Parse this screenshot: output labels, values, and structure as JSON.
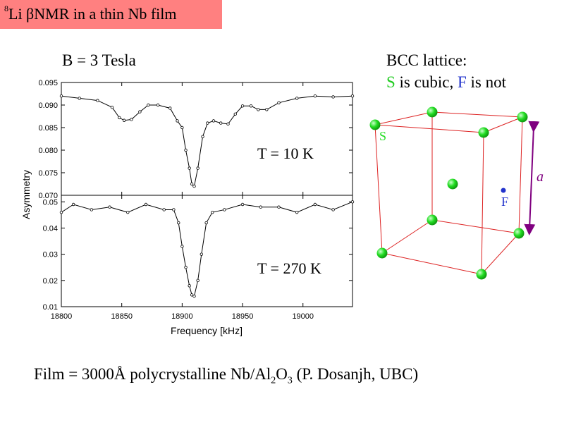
{
  "slide": {
    "title_sup": "8",
    "title_text": "Li βNMR in a thin Nb film",
    "field": "B = 3 Tesla",
    "bcc_title": "BCC lattice:",
    "bcc_s": "S",
    "bcc_mid": " is cubic, ",
    "bcc_f": "F",
    "bcc_end": " is not",
    "footer_pre": "Film = 3000Å polycrystalline Nb/Al",
    "footer_sub1": "2",
    "footer_mid": "O",
    "footer_sub2": "3",
    "footer_post": " (P. Dosanjh, UBC)"
  },
  "lattice": {
    "site_s": "S",
    "site_f": "F",
    "edge_label": "a",
    "colors": {
      "atom": "#22dd22",
      "edge": "#dd2222",
      "arrow": "#800080",
      "f_site": "#2233cc"
    }
  },
  "chart_data": {
    "type": "line",
    "xlabel": "Frequency [kHz]",
    "ylabel": "Asymmetry",
    "xlim": [
      18800,
      19041
    ],
    "xticks": [
      18800,
      18850,
      18900,
      18950,
      19000
    ],
    "panels": [
      {
        "annotation": "T = 10 K",
        "ylim": [
          0.07,
          0.095
        ],
        "yticks": [
          "0.070",
          "0.075",
          "0.080",
          "0.085",
          "0.090",
          "0.095"
        ],
        "ytick_values": [
          0.07,
          0.075,
          0.08,
          0.085,
          0.09,
          0.095
        ],
        "x": [
          18800,
          18815,
          18830,
          18842,
          18848,
          18852,
          18858,
          18865,
          18872,
          18880,
          18890,
          18896,
          18900,
          18903,
          18906,
          18908,
          18910,
          18913,
          18917,
          18921,
          18926,
          18932,
          18938,
          18944,
          18950,
          18957,
          18963,
          18970,
          18980,
          18995,
          19010,
          19025,
          19041
        ],
        "y": [
          0.092,
          0.0915,
          0.091,
          0.0895,
          0.0872,
          0.0866,
          0.0868,
          0.0885,
          0.09,
          0.09,
          0.0893,
          0.0865,
          0.085,
          0.08,
          0.076,
          0.0725,
          0.072,
          0.076,
          0.083,
          0.086,
          0.0865,
          0.086,
          0.0858,
          0.088,
          0.0898,
          0.0898,
          0.089,
          0.089,
          0.0905,
          0.0915,
          0.092,
          0.0918,
          0.092
        ]
      },
      {
        "annotation": "T = 270 K",
        "ylim": [
          0.01,
          0.0525
        ],
        "yticks": [
          "0.01",
          "0.02",
          "0.03",
          "0.04",
          "0.05"
        ],
        "ytick_values": [
          0.01,
          0.02,
          0.03,
          0.04,
          0.05
        ],
        "x": [
          18800,
          18810,
          18825,
          18840,
          18855,
          18870,
          18885,
          18893,
          18897,
          18900,
          18903,
          18906,
          18908,
          18910,
          18913,
          18916,
          18920,
          18925,
          18935,
          18950,
          18965,
          18980,
          18995,
          19010,
          19025,
          19041
        ],
        "y": [
          0.046,
          0.049,
          0.047,
          0.048,
          0.046,
          0.049,
          0.047,
          0.047,
          0.042,
          0.033,
          0.025,
          0.018,
          0.0145,
          0.014,
          0.02,
          0.03,
          0.042,
          0.046,
          0.047,
          0.049,
          0.048,
          0.048,
          0.046,
          0.049,
          0.047,
          0.05
        ]
      }
    ]
  }
}
